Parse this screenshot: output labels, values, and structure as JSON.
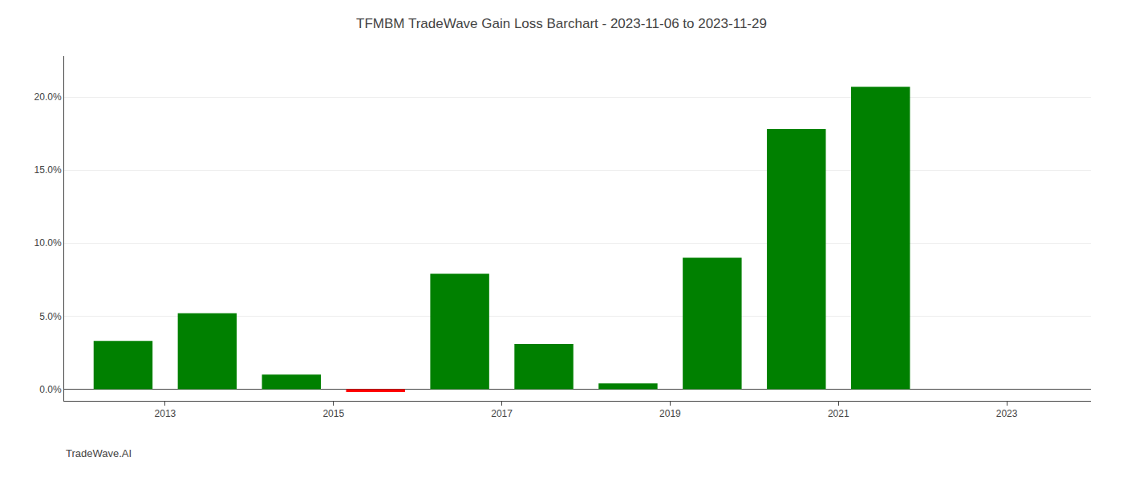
{
  "chart_data": {
    "type": "bar",
    "title": "TFMBM TradeWave Gain Loss Barchart - 2023-11-06 to 2023-11-29",
    "annotations": [
      "TradeWave.AI"
    ],
    "x": [
      2012.5,
      2013.5,
      2014.5,
      2015.5,
      2016.5,
      2017.5,
      2018.5,
      2019.5,
      2020.5,
      2021.5
    ],
    "values": [
      0.033,
      0.052,
      0.01,
      -0.002,
      0.079,
      0.031,
      0.004,
      0.09,
      0.178,
      0.207
    ],
    "colors": [
      "#008000",
      "#008000",
      "#008000",
      "#ff0000",
      "#008000",
      "#008000",
      "#008000",
      "#008000",
      "#008000",
      "#008000"
    ],
    "xlim": [
      2011.8,
      2024.0
    ],
    "xticks": [
      2013,
      2015,
      2017,
      2019,
      2021,
      2023
    ],
    "ylim": [
      -0.008,
      0.228
    ],
    "yticks": [
      {
        "value": 0,
        "label": "0.0%"
      },
      {
        "value": 0.05,
        "label": "5.0%"
      },
      {
        "value": 0.1,
        "label": "10.0%"
      },
      {
        "value": 0.15,
        "label": "15.0%"
      },
      {
        "value": 0.2,
        "label": "20.0%"
      }
    ],
    "grid": true
  }
}
